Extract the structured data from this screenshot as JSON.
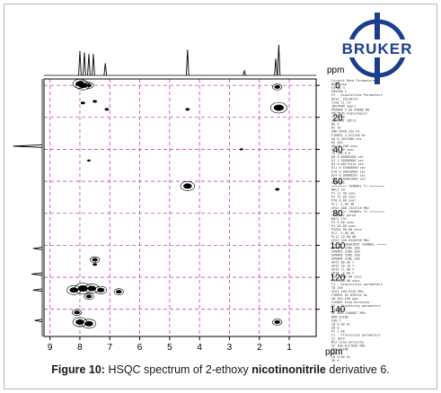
{
  "chart_data": {
    "type": "scatter",
    "title": "",
    "x_axis": {
      "label": "ppm",
      "range": [
        9.2,
        0.1
      ],
      "ticks": [
        9,
        8,
        7,
        6,
        5,
        4,
        3,
        2,
        1
      ]
    },
    "y_axis": {
      "label": "ppm",
      "range": [
        -4,
        157
      ],
      "ticks": [
        0,
        20,
        40,
        60,
        80,
        100,
        120,
        140
      ]
    },
    "grid": true,
    "cross_peaks": [
      {
        "x": 8.0,
        "y": -1,
        "size": 3
      },
      {
        "x": 7.9,
        "y": 0,
        "size": 3
      },
      {
        "x": 7.7,
        "y": 0,
        "size": 2
      },
      {
        "x": 7.9,
        "y": 11,
        "size": 1.5
      },
      {
        "x": 7.5,
        "y": 10,
        "size": 1.5
      },
      {
        "x": 7.1,
        "y": 15,
        "size": 1.5
      },
      {
        "x": 4.4,
        "y": 15,
        "size": 1.5
      },
      {
        "x": 1.4,
        "y": 1,
        "size": 2
      },
      {
        "x": 1.35,
        "y": 14,
        "size": 3.5
      },
      {
        "x": 7.7,
        "y": 47,
        "size": 1.2
      },
      {
        "x": 2.6,
        "y": 40,
        "size": 1.2
      },
      {
        "x": 4.4,
        "y": 63,
        "size": 3
      },
      {
        "x": 1.4,
        "y": 65,
        "size": 1.5
      },
      {
        "x": 7.5,
        "y": 109,
        "size": 2
      },
      {
        "x": 7.5,
        "y": 112,
        "size": 1.5
      },
      {
        "x": 8.2,
        "y": 128,
        "size": 3
      },
      {
        "x": 7.9,
        "y": 127,
        "size": 3.5
      },
      {
        "x": 7.6,
        "y": 127,
        "size": 3
      },
      {
        "x": 7.3,
        "y": 128,
        "size": 2.5
      },
      {
        "x": 6.7,
        "y": 129,
        "size": 2
      },
      {
        "x": 7.7,
        "y": 132,
        "size": 2
      },
      {
        "x": 8.1,
        "y": 142,
        "size": 2
      },
      {
        "x": 8.0,
        "y": 148,
        "size": 3
      },
      {
        "x": 7.7,
        "y": 149,
        "size": 3
      },
      {
        "x": 1.4,
        "y": 148,
        "size": 2
      }
    ],
    "proton_projection_peaks": [
      {
        "x": 8.0,
        "h": 0.8
      },
      {
        "x": 7.85,
        "h": 0.75
      },
      {
        "x": 7.7,
        "h": 0.7
      },
      {
        "x": 7.55,
        "h": 0.7
      },
      {
        "x": 7.15,
        "h": 0.4
      },
      {
        "x": 4.4,
        "h": 0.85
      },
      {
        "x": 2.5,
        "h": 0.15
      },
      {
        "x": 1.45,
        "h": 0.55
      },
      {
        "x": 1.35,
        "h": 1.0
      }
    ],
    "carbon_projection_peaks": [
      {
        "y": 38,
        "h": 0.95
      },
      {
        "y": 102,
        "h": 0.3
      },
      {
        "y": 118,
        "h": 0.35
      },
      {
        "y": 128,
        "h": 0.3
      },
      {
        "y": 147,
        "h": 0.25
      }
    ]
  },
  "logo": {
    "text": "BRUKER"
  },
  "acquisition_parameters": [
    "Current Data Parameters",
    "NAME          exp",
    "EXPNO           3",
    "PROCNO          1",
    "F2 - Acquisition Parameters",
    "Date_    20130714",
    "Time        11.24",
    "INSTRUM     spect",
    "PROBHD   5 mm PABBO BB-",
    "PULPROG  hsqcetgpsi2",
    "TD           2048",
    "SOLVENT     CDCl3",
    "NS              4",
    "DS             16",
    "SWH      5040.323 Hz",
    "FIDRES   4.922190 Hz",
    "AQ      0.2031900 sec",
    "RG            203",
    "DW         99.200 usec",
    "DE           6.50 usec",
    "TE          298.0 K",
    "D0     0.00000300 sec",
    "D1     1.50000000 sec",
    "D4     0.00172414 sec",
    "D11    0.03000000 sec",
    "D16    0.00020000 sec",
    "D24    0.00086207 sec",
    "IN0    0.00001680 sec",
    "ZGOPTNS",
    "======== CHANNEL f1 ========",
    "NUC1           1H",
    "P1          11.40 usec",
    "P2          22.80 usec",
    "P28          0.00 usec",
    "PL1         -1.00 dB",
    "SFO1   400.1324710 MHz",
    "======== CHANNEL f2 ========",
    "CPDPRG2    garp4",
    "NUC2          13C",
    "P3           9.00 usec",
    "P4          18.00 usec",
    "PCPD2       80.00 usec",
    "PL2         -3.00 dB",
    "PL12        15.00 dB",
    "SFO2   100.6228298 MHz",
    "====== GRADIENT CHANNEL =====",
    "GPNAM1  SINE.100",
    "GPNAM2  SINE.100",
    "GPNAM3  SINE.100",
    "GPNAM4  SINE.100",
    "GPZ1        80.00 %",
    "GPZ2        20.10 %",
    "GPZ3        11.00 %",
    "GPZ4        -5.00 %",
    "P16        1000.00 usec",
    "P19         600.00 usec",
    "F1 - Acquisition parameters",
    "TD            256",
    "SFO1  100.6228 MHz",
    "FIDRES  65.039234 Hz",
    "SW         165.638 ppm",
    "FnMODE  Echo-Antiecho",
    "F2 - Processing parameters",
    "SI           1024",
    "SF    400.1300087 MHz",
    "WDW         QSINE",
    "SSB             2",
    "LB           0.00 Hz",
    "GB              0",
    "PC           1.40",
    "F1 - Processing parameters",
    "SI           1024",
    "MC2  echo-antiecho",
    "SF    100.6127690 MHz",
    "WDW         QSINE",
    "SSB             2",
    "LB           0.00 Hz",
    "GB              0"
  ],
  "caption": {
    "label": "Figure 10:",
    "text_pre": " HSQC spectrum of 2-ethoxy ",
    "text_bold": "nicotinonitrile",
    "text_post": " derivative 6."
  }
}
